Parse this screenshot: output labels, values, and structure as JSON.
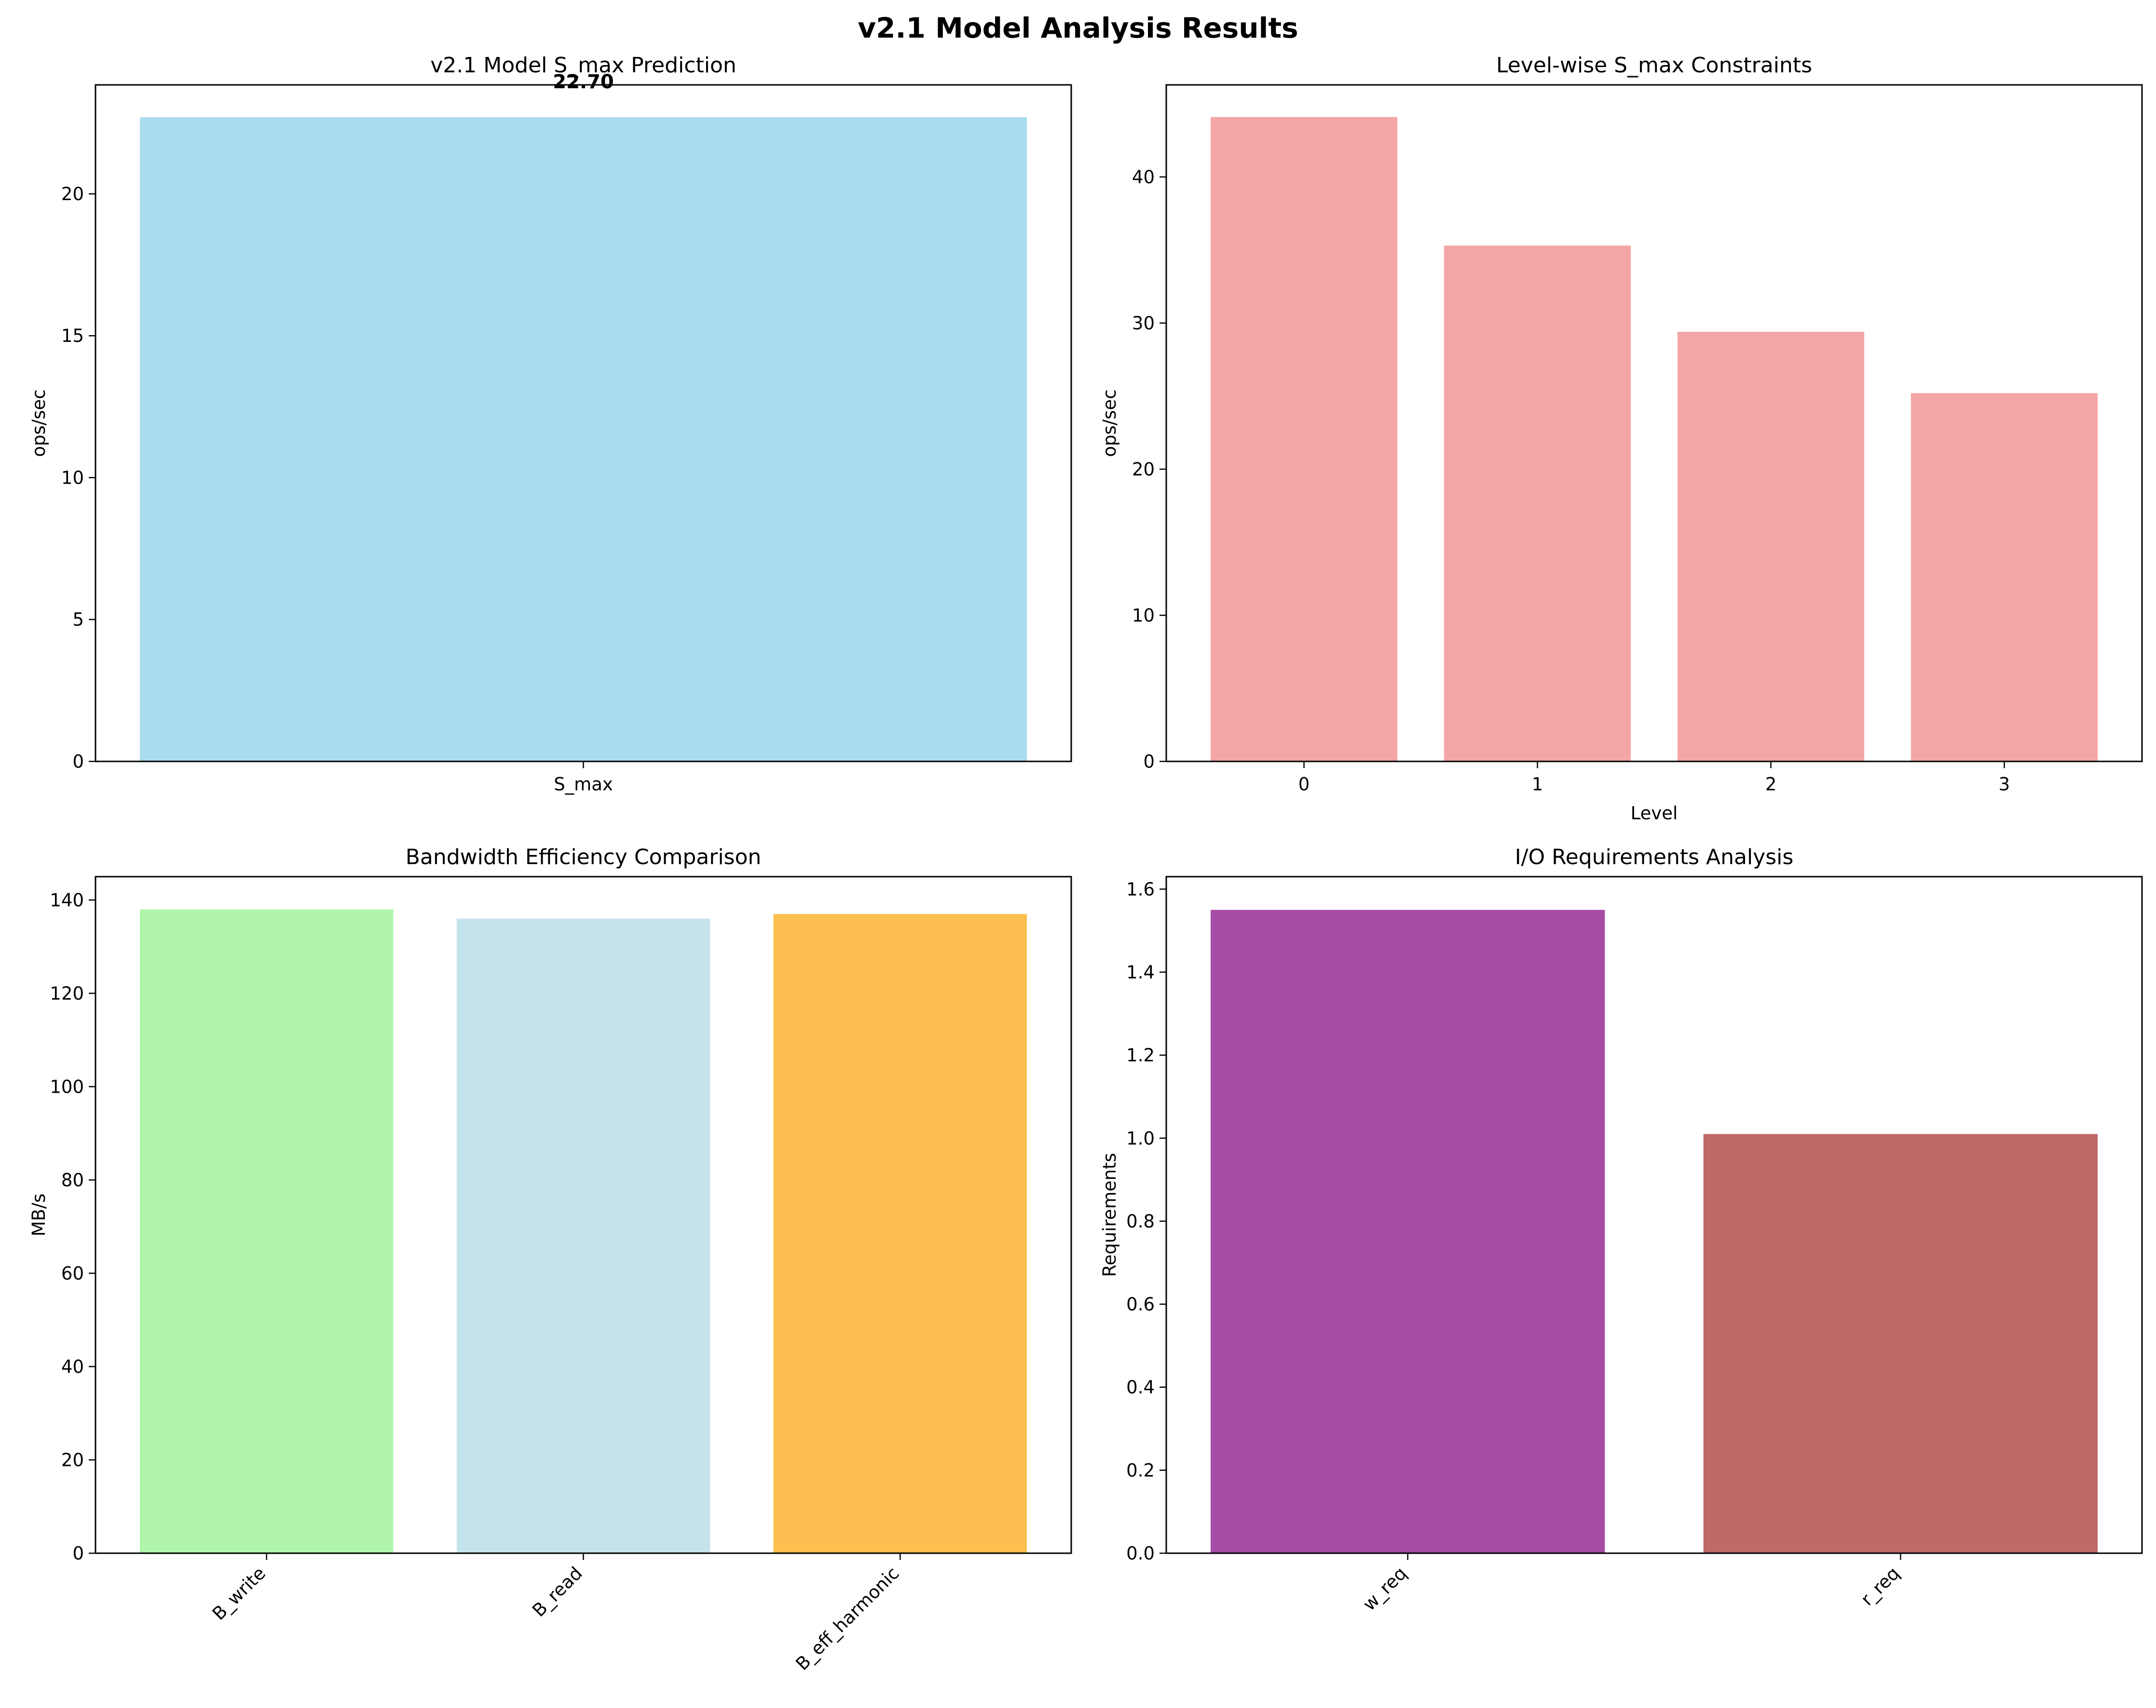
{
  "figure": {
    "title": "v2.1 Model Analysis Results"
  },
  "chart_data": [
    {
      "type": "bar",
      "title": "v2.1 Model S_max Prediction",
      "xlabel": "",
      "ylabel": "ops/sec",
      "categories": [
        "S_max"
      ],
      "values": [
        22.7
      ],
      "data_labels": [
        "22.70"
      ],
      "ylim": [
        0,
        23.84
      ],
      "yticks": [
        0,
        5,
        10,
        15,
        20
      ],
      "xtick_rotation": 0,
      "colors": [
        "#aadcf0"
      ],
      "grid": false
    },
    {
      "type": "bar",
      "title": "Level-wise S_max Constraints",
      "xlabel": "Level",
      "ylabel": "ops/sec",
      "categories": [
        "0",
        "1",
        "2",
        "3"
      ],
      "values": [
        44.1,
        35.3,
        29.4,
        25.2
      ],
      "data_labels": [],
      "ylim": [
        0,
        46.3
      ],
      "yticks": [
        0,
        10,
        20,
        30,
        40
      ],
      "xtick_rotation": 0,
      "colors": [
        "#f4a6a6",
        "#f4a6a6",
        "#f4a6a6",
        "#f4a6a6"
      ],
      "grid": false
    },
    {
      "type": "bar",
      "title": "Bandwidth Efficiency Comparison",
      "xlabel": "",
      "ylabel": "MB/s",
      "categories": [
        "B_write",
        "B_read",
        "B_eff_harmonic"
      ],
      "values": [
        138,
        136,
        137
      ],
      "data_labels": [],
      "ylim": [
        0,
        145
      ],
      "yticks": [
        0,
        20,
        40,
        60,
        80,
        100,
        120,
        140
      ],
      "xtick_rotation": 45,
      "colors": [
        "#b1f4ae",
        "#c5e3ec",
        "#fdbf4f"
      ],
      "grid": false
    },
    {
      "type": "bar",
      "title": "I/O Requirements Analysis",
      "xlabel": "",
      "ylabel": "Requirements",
      "categories": [
        "w_req",
        "r_req"
      ],
      "values": [
        1.55,
        1.01
      ],
      "data_labels": [],
      "ylim": [
        0,
        1.63
      ],
      "yticks": [
        0.0,
        0.2,
        0.4,
        0.6,
        0.8,
        1.0,
        1.2,
        1.4,
        1.6
      ],
      "ytick_decimals": 1,
      "xtick_rotation": 45,
      "colors": [
        "#a64ca6",
        "#bf6969"
      ],
      "grid": false
    }
  ]
}
